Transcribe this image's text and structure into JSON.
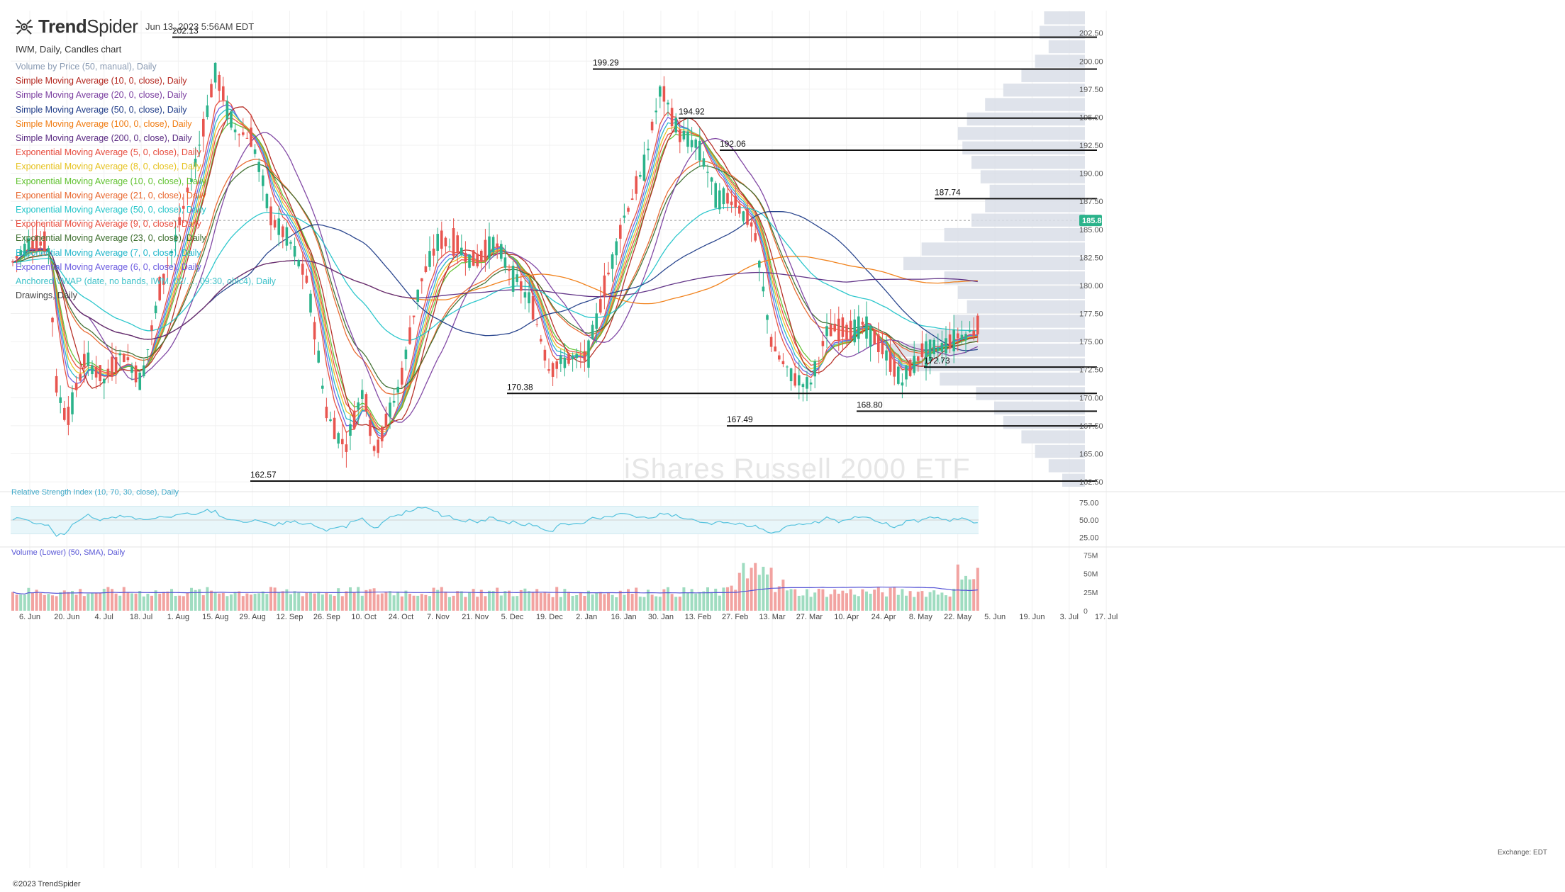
{
  "header": {
    "brand": "TrendSpider",
    "timestamp": "Jun 13, 2023 5:56AM EDT",
    "ticker_line": "IWM, Daily, Candles chart",
    "copyright": "©2023 TrendSpider",
    "exchange": "Exchange: EDT",
    "watermark": "iShares Russell 2000 ETF"
  },
  "legend": [
    {
      "label": "Volume by Price (50, manual), Daily",
      "color": "#8a9bb3"
    },
    {
      "label": "Simple Moving Average (10, 0, close), Daily",
      "color": "#b3261e"
    },
    {
      "label": "Simple Moving Average (20, 0, close), Daily",
      "color": "#7b3fa0"
    },
    {
      "label": "Simple Moving Average (50, 0, close), Daily",
      "color": "#1f3c88"
    },
    {
      "label": "Simple Moving Average (100, 0, close), Daily",
      "color": "#f07c12"
    },
    {
      "label": "Simple Moving Average (200, 0, close), Daily",
      "color": "#5a2a82"
    },
    {
      "label": "Exponential Moving Average (5, 0, close), Daily",
      "color": "#e64a3c"
    },
    {
      "label": "Exponential Moving Average (8, 0, close), Daily",
      "color": "#e6c21e"
    },
    {
      "label": "Exponential Moving Average (10, 0, close), Daily",
      "color": "#5fc12e"
    },
    {
      "label": "Exponential Moving Average (21, 0, close), Daily",
      "color": "#e8642a"
    },
    {
      "label": "Exponential Moving Average (50, 0, close), Daily",
      "color": "#22c4c9"
    },
    {
      "label": "Exponential Moving Average (9, 0, close), Daily",
      "color": "#e84b3c"
    },
    {
      "label": "Exponential Moving Average (23, 0, close), Daily",
      "color": "#3d6e2e"
    },
    {
      "label": "Exponential Moving Average (7, 0, close), Daily",
      "color": "#1fb5c9"
    },
    {
      "label": "Exponential Moving Average (6, 0, close), Daily",
      "color": "#6b5be0"
    },
    {
      "label": "Anchored VWAP (date, no bands, IWM, 02/…, 09:30, ohlc4), Daily",
      "color": "#3fc2c9"
    },
    {
      "label": "Drawings, Daily",
      "color": "#444444"
    }
  ],
  "colors": {
    "bull": "#2bb38b",
    "bear": "#e8554f",
    "vol_bull": "#9fdcc0",
    "vol_bear": "#f2a3a1",
    "vbp": "#d9dee8",
    "rsi_band": "#e8f6fa",
    "rsi_line": "#55c2dd",
    "vol_sma": "#5856d6",
    "price_tag": "#2bb38b"
  },
  "chart_data": {
    "type": "candlestick",
    "price_axis": {
      "ticks": [
        "202.50",
        "200.00",
        "197.50",
        "195.00",
        "192.50",
        "190.00",
        "187.50",
        "185.00",
        "182.50",
        "180.00",
        "177.50",
        "175.00",
        "172.50",
        "170.00",
        "167.50",
        "165.00",
        "162.50"
      ],
      "range": [
        162.0,
        204.5
      ]
    },
    "last_price_label": "185.8",
    "horizontal_levels": [
      {
        "label": "202.13",
        "value": 202.13,
        "start_label_date": "Aug"
      },
      {
        "label": "199.29",
        "value": 199.29,
        "start_label_date": "Jan"
      },
      {
        "label": "194.92",
        "value": 194.92,
        "start_label_date": "Feb"
      },
      {
        "label": "192.06",
        "value": 192.06,
        "start_label_date": "Mar"
      },
      {
        "label": "187.74",
        "value": 187.74,
        "start_label_date": "Jun"
      },
      {
        "label": "172.73",
        "value": 172.73,
        "start_label_date": "May"
      },
      {
        "label": "170.38",
        "value": 170.38,
        "start_label_date": "Dec"
      },
      {
        "label": "168.80",
        "value": 168.8,
        "start_label_date": "Apr"
      },
      {
        "label": "167.49",
        "value": 167.49,
        "start_label_date": "Mar"
      },
      {
        "label": "162.57",
        "value": 162.57,
        "start_label_date": "Sep"
      }
    ],
    "x_ticks": [
      "6. Jun",
      "20. Jun",
      "4. Jul",
      "18. Jul",
      "1. Aug",
      "15. Aug",
      "29. Aug",
      "12. Sep",
      "26. Sep",
      "10. Oct",
      "24. Oct",
      "7. Nov",
      "21. Nov",
      "5. Dec",
      "19. Dec",
      "2. Jan",
      "16. Jan",
      "30. Jan",
      "13. Feb",
      "27. Feb",
      "13. Mar",
      "27. Mar",
      "10. Apr",
      "24. Apr",
      "8. May",
      "22. May",
      "5. Jun",
      "19. Jun",
      "3. Jul",
      "17. Jul"
    ],
    "close_path": [
      {
        "t": "6. Jun",
        "v": 184.0
      },
      {
        "t": "13. Jun",
        "v": 183.5
      },
      {
        "t": "16. Jun",
        "v": 171.0
      },
      {
        "t": "20. Jun",
        "v": 168.0
      },
      {
        "t": "27. Jun",
        "v": 173.5
      },
      {
        "t": "4. Jul",
        "v": 171.5
      },
      {
        "t": "11. Jul",
        "v": 174.0
      },
      {
        "t": "18. Jul",
        "v": 171.5
      },
      {
        "t": "25. Jul",
        "v": 179.5
      },
      {
        "t": "1. Aug",
        "v": 185.0
      },
      {
        "t": "8. Aug",
        "v": 191.5
      },
      {
        "t": "15. Aug",
        "v": 199.0
      },
      {
        "t": "22. Aug",
        "v": 194.0
      },
      {
        "t": "29. Aug",
        "v": 193.0
      },
      {
        "t": "5. Sep",
        "v": 186.0
      },
      {
        "t": "12. Sep",
        "v": 184.0
      },
      {
        "t": "19. Sep",
        "v": 180.0
      },
      {
        "t": "26. Sep",
        "v": 168.5
      },
      {
        "t": "3. Oct",
        "v": 165.5
      },
      {
        "t": "10. Oct",
        "v": 171.0
      },
      {
        "t": "14. Oct",
        "v": 165.0
      },
      {
        "t": "24. Oct",
        "v": 171.5
      },
      {
        "t": "31. Oct",
        "v": 180.0
      },
      {
        "t": "7. Nov",
        "v": 184.0
      },
      {
        "t": "14. Nov",
        "v": 183.5
      },
      {
        "t": "21. Nov",
        "v": 182.0
      },
      {
        "t": "28. Nov",
        "v": 184.0
      },
      {
        "t": "5. Dec",
        "v": 181.0
      },
      {
        "t": "12. Dec",
        "v": 178.5
      },
      {
        "t": "19. Dec",
        "v": 172.5
      },
      {
        "t": "26. Dec",
        "v": 173.5
      },
      {
        "t": "2. Jan",
        "v": 173.5
      },
      {
        "t": "9. Jan",
        "v": 180.0
      },
      {
        "t": "16. Jan",
        "v": 186.0
      },
      {
        "t": "23. Jan",
        "v": 190.0
      },
      {
        "t": "30. Jan",
        "v": 197.5
      },
      {
        "t": "6. Feb",
        "v": 193.5
      },
      {
        "t": "13. Feb",
        "v": 192.5
      },
      {
        "t": "20. Feb",
        "v": 188.0
      },
      {
        "t": "27. Feb",
        "v": 187.5
      },
      {
        "t": "6. Mar",
        "v": 185.0
      },
      {
        "t": "13. Mar",
        "v": 174.5
      },
      {
        "t": "20. Mar",
        "v": 172.0
      },
      {
        "t": "27. Mar",
        "v": 171.0
      },
      {
        "t": "3. Apr",
        "v": 176.0
      },
      {
        "t": "10. Apr",
        "v": 176.0
      },
      {
        "t": "17. Apr",
        "v": 176.5
      },
      {
        "t": "24. Apr",
        "v": 174.0
      },
      {
        "t": "1. May",
        "v": 171.5
      },
      {
        "t": "8. May",
        "v": 174.0
      },
      {
        "t": "15. May",
        "v": 174.5
      },
      {
        "t": "22. May",
        "v": 175.5
      },
      {
        "t": "29. May",
        "v": 176.0
      },
      {
        "t": "5. Jun",
        "v": 184.0
      },
      {
        "t": "12. Jun",
        "v": 185.8
      }
    ],
    "rsi": {
      "label": "Relative Strength Index (10, 70, 30, close), Daily",
      "ticks": [
        "75.00",
        "50.00",
        "25.00"
      ],
      "upper": 70,
      "lower": 30
    },
    "volume": {
      "label": "Volume (Lower) (50, SMA), Daily",
      "ticks": [
        "75M",
        "50M",
        "25M",
        "0"
      ]
    }
  }
}
